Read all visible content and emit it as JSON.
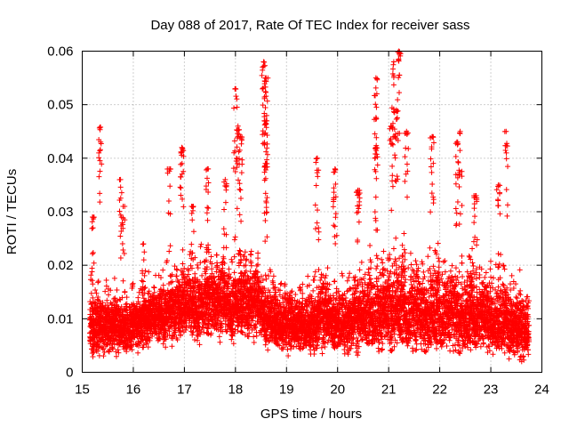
{
  "chart_data": {
    "type": "scatter",
    "title": "Day 088 of 2017, Rate Of TEC Index for receiver sass",
    "xlabel": "GPS time / hours",
    "ylabel": "ROTI / TECUs",
    "xlim": [
      15,
      24
    ],
    "ylim": [
      0,
      0.06
    ],
    "x_ticks": [
      "15",
      "16",
      "17",
      "18",
      "19",
      "20",
      "21",
      "22",
      "23",
      "24"
    ],
    "y_ticks": [
      "0",
      "0.01",
      "0.02",
      "0.03",
      "0.04",
      "0.05",
      "0.06"
    ],
    "grid": true,
    "marker": "+",
    "series_color": "#ff0000",
    "time_range": [
      15.15,
      23.75
    ],
    "envelope": [
      {
        "x": 15.15,
        "base": 0.003,
        "top": 0.022
      },
      {
        "x": 15.3,
        "base": 0.004,
        "top": 0.02
      },
      {
        "x": 15.5,
        "base": 0.004,
        "top": 0.02
      },
      {
        "x": 15.7,
        "base": 0.004,
        "top": 0.018
      },
      {
        "x": 16.0,
        "base": 0.005,
        "top": 0.018
      },
      {
        "x": 16.3,
        "base": 0.005,
        "top": 0.02
      },
      {
        "x": 16.6,
        "base": 0.006,
        "top": 0.023
      },
      {
        "x": 16.9,
        "base": 0.006,
        "top": 0.025
      },
      {
        "x": 17.2,
        "base": 0.006,
        "top": 0.027
      },
      {
        "x": 17.5,
        "base": 0.006,
        "top": 0.028
      },
      {
        "x": 17.8,
        "base": 0.006,
        "top": 0.028
      },
      {
        "x": 18.1,
        "base": 0.006,
        "top": 0.03
      },
      {
        "x": 18.4,
        "base": 0.006,
        "top": 0.027
      },
      {
        "x": 18.7,
        "base": 0.005,
        "top": 0.023
      },
      {
        "x": 19.0,
        "base": 0.004,
        "top": 0.02
      },
      {
        "x": 19.3,
        "base": 0.004,
        "top": 0.022
      },
      {
        "x": 19.6,
        "base": 0.004,
        "top": 0.025
      },
      {
        "x": 19.9,
        "base": 0.004,
        "top": 0.024
      },
      {
        "x": 20.2,
        "base": 0.004,
        "top": 0.024
      },
      {
        "x": 20.5,
        "base": 0.004,
        "top": 0.026
      },
      {
        "x": 20.8,
        "base": 0.004,
        "top": 0.03
      },
      {
        "x": 21.1,
        "base": 0.004,
        "top": 0.032
      },
      {
        "x": 21.4,
        "base": 0.004,
        "top": 0.03
      },
      {
        "x": 21.7,
        "base": 0.004,
        "top": 0.03
      },
      {
        "x": 22.0,
        "base": 0.004,
        "top": 0.028
      },
      {
        "x": 22.3,
        "base": 0.004,
        "top": 0.028
      },
      {
        "x": 22.6,
        "base": 0.004,
        "top": 0.027
      },
      {
        "x": 22.9,
        "base": 0.004,
        "top": 0.026
      },
      {
        "x": 23.2,
        "base": 0.004,
        "top": 0.025
      },
      {
        "x": 23.5,
        "base": 0.003,
        "top": 0.022
      },
      {
        "x": 23.75,
        "base": 0.002,
        "top": 0.02
      }
    ],
    "peak_clusters": [
      {
        "x": 15.2,
        "y": 0.029
      },
      {
        "x": 15.35,
        "y": 0.0458
      },
      {
        "x": 15.75,
        "y": 0.036
      },
      {
        "x": 15.8,
        "y": 0.031
      },
      {
        "x": 16.2,
        "y": 0.024
      },
      {
        "x": 16.7,
        "y": 0.038
      },
      {
        "x": 16.95,
        "y": 0.042
      },
      {
        "x": 17.15,
        "y": 0.031
      },
      {
        "x": 17.45,
        "y": 0.038
      },
      {
        "x": 17.8,
        "y": 0.036
      },
      {
        "x": 18.0,
        "y": 0.053
      },
      {
        "x": 18.05,
        "y": 0.046
      },
      {
        "x": 18.1,
        "y": 0.044
      },
      {
        "x": 18.55,
        "y": 0.058
      },
      {
        "x": 18.6,
        "y": 0.055
      },
      {
        "x": 18.6,
        "y": 0.047
      },
      {
        "x": 18.6,
        "y": 0.039
      },
      {
        "x": 19.6,
        "y": 0.04
      },
      {
        "x": 19.95,
        "y": 0.038
      },
      {
        "x": 20.4,
        "y": 0.034
      },
      {
        "x": 20.75,
        "y": 0.055
      },
      {
        "x": 20.75,
        "y": 0.042
      },
      {
        "x": 21.1,
        "y": 0.058
      },
      {
        "x": 21.15,
        "y": 0.049
      },
      {
        "x": 21.2,
        "y": 0.06
      },
      {
        "x": 21.05,
        "y": 0.046
      },
      {
        "x": 21.35,
        "y": 0.045
      },
      {
        "x": 21.85,
        "y": 0.044
      },
      {
        "x": 22.4,
        "y": 0.045
      },
      {
        "x": 22.35,
        "y": 0.043
      },
      {
        "x": 22.7,
        "y": 0.033
      },
      {
        "x": 23.15,
        "y": 0.035
      },
      {
        "x": 23.3,
        "y": 0.045
      }
    ]
  }
}
